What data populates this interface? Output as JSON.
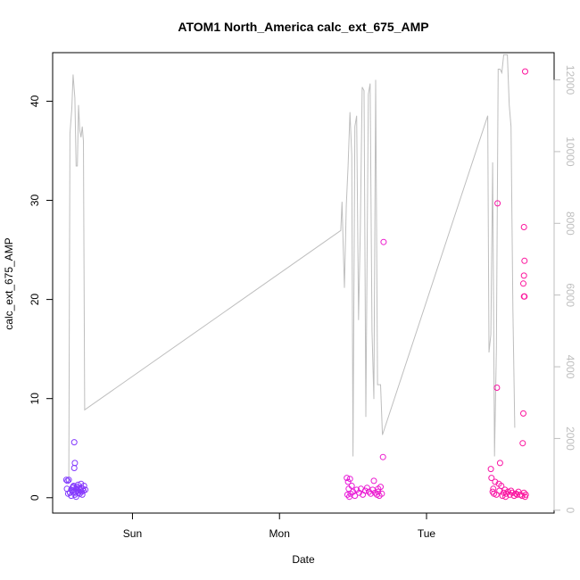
{
  "chart_data": {
    "type": "scatter",
    "title": "ATOM1 North_America calc_ext_675_AMP",
    "xlabel": "Date",
    "ylabel": "calc_ext_675_AMP",
    "x_ticks": [
      "Sun",
      "Mon",
      "Tue"
    ],
    "x_tick_hours": [
      12,
      36,
      60
    ],
    "xlim_hours": [
      -1.03,
      80.83
    ],
    "ylim": [
      -1.55,
      44.9
    ],
    "y_ticks": [
      0,
      10,
      20,
      30,
      40
    ],
    "y2lim": [
      -80,
      12760
    ],
    "y2_ticks": [
      0,
      2000,
      4000,
      6000,
      8000,
      10000,
      12000
    ],
    "grid": false,
    "legend": "none",
    "colors": {
      "line": "#bebebe",
      "point_start": "#7a3cff",
      "point_mid": "#e31fe8",
      "point_end": "#ff1493",
      "axis": "#000000",
      "right_axis": "#bebebe"
    },
    "series": [
      {
        "axis": "left",
        "style": "points",
        "points": [
          [
            1.2,
            1.8
          ],
          [
            1.4,
            1.7
          ],
          [
            1.6,
            1.8
          ],
          [
            1.3,
            0.9
          ],
          [
            1.5,
            0.4
          ],
          [
            1.8,
            0.5
          ],
          [
            2.0,
            0.8
          ],
          [
            2.2,
            1.0
          ],
          [
            2.4,
            0.6
          ],
          [
            2.6,
            0.3
          ],
          [
            2.8,
            0.9
          ],
          [
            2.9,
            1.1
          ],
          [
            3.0,
            0.7
          ],
          [
            2.4,
            1.2
          ],
          [
            2.7,
            0.5
          ],
          [
            3.1,
            1.3
          ],
          [
            3.3,
            1.0
          ],
          [
            3.4,
            0.4
          ],
          [
            3.5,
            0.8
          ],
          [
            2.5,
            5.6
          ],
          [
            2.5,
            3.0
          ],
          [
            2.6,
            3.5
          ],
          [
            2.3,
            1.1
          ],
          [
            2.0,
            0.2
          ],
          [
            2.2,
            0.7
          ],
          [
            3.6,
            1.0
          ],
          [
            3.7,
            0.6
          ],
          [
            3.9,
            0.9
          ],
          [
            4.1,
            1.2
          ],
          [
            4.3,
            0.8
          ],
          [
            2.8,
            0.1
          ],
          [
            3.8,
            0.3
          ],
          [
            3.2,
            0.5
          ],
          [
            4.0,
            0.7
          ],
          [
            3.6,
            1.4
          ],
          [
            47.0,
            2.0
          ],
          [
            47.2,
            1.6
          ],
          [
            47.3,
            0.9
          ],
          [
            47.1,
            0.3
          ],
          [
            47.4,
            0.1
          ],
          [
            47.6,
            0.4
          ],
          [
            47.8,
            1.2
          ],
          [
            48.0,
            0.6
          ],
          [
            48.3,
            0.2
          ],
          [
            48.6,
            0.8
          ],
          [
            49.0,
            0.5
          ],
          [
            49.3,
            0.9
          ],
          [
            49.6,
            0.3
          ],
          [
            50.0,
            0.7
          ],
          [
            50.3,
            1.0
          ],
          [
            50.6,
            0.6
          ],
          [
            50.9,
            0.4
          ],
          [
            51.2,
            0.8
          ],
          [
            51.4,
            1.7
          ],
          [
            51.6,
            0.5
          ],
          [
            51.9,
            0.3
          ],
          [
            52.1,
            0.9
          ],
          [
            52.3,
            0.2
          ],
          [
            52.5,
            1.1
          ],
          [
            52.1,
            0.6
          ],
          [
            47.5,
            1.9
          ],
          [
            52.7,
            0.4
          ],
          [
            53.0,
            25.8
          ],
          [
            52.9,
            4.1
          ],
          [
            70.5,
            2.9
          ],
          [
            70.6,
            2.0
          ],
          [
            70.8,
            0.6
          ],
          [
            71.0,
            0.4
          ],
          [
            71.2,
            1.6
          ],
          [
            71.4,
            0.3
          ],
          [
            71.6,
            29.7
          ],
          [
            71.5,
            11.1
          ],
          [
            71.8,
            1.4
          ],
          [
            72.0,
            3.5
          ],
          [
            72.2,
            1.2
          ],
          [
            72.4,
            0.2
          ],
          [
            72.6,
            0.5
          ],
          [
            72.8,
            0.8
          ],
          [
            73.0,
            0.4
          ],
          [
            73.3,
            0.6
          ],
          [
            73.6,
            0.3
          ],
          [
            74.0,
            0.5
          ],
          [
            74.3,
            0.2
          ],
          [
            74.6,
            0.4
          ],
          [
            75.0,
            0.6
          ],
          [
            75.3,
            0.3
          ],
          [
            75.6,
            0.2
          ],
          [
            75.9,
            0.5
          ],
          [
            76.1,
            0.1
          ],
          [
            75.7,
            5.5
          ],
          [
            75.8,
            8.5
          ],
          [
            75.9,
            20.3
          ],
          [
            76.0,
            20.3
          ],
          [
            75.8,
            21.6
          ],
          [
            75.9,
            22.4
          ],
          [
            76.0,
            23.9
          ],
          [
            75.9,
            27.3
          ],
          [
            76.1,
            43.0
          ],
          [
            76.2,
            0.3
          ],
          [
            70.9,
            0.9
          ],
          [
            71.9,
            0.7
          ],
          [
            72.9,
            0.1
          ],
          [
            73.8,
            0.7
          ],
          [
            74.8,
            0.3
          ]
        ]
      },
      {
        "axis": "right",
        "style": "line",
        "points": [
          [
            1.6,
            800
          ],
          [
            1.8,
            10500
          ],
          [
            2.1,
            11200
          ],
          [
            2.3,
            12150
          ],
          [
            2.6,
            11500
          ],
          [
            2.8,
            9600
          ],
          [
            3.0,
            9600
          ],
          [
            3.2,
            11300
          ],
          [
            3.4,
            10600
          ],
          [
            3.6,
            10400
          ],
          [
            3.8,
            10700
          ],
          [
            4.0,
            10300
          ],
          [
            4.2,
            2800
          ],
          [
            46.0,
            7800
          ],
          [
            46.2,
            8600
          ],
          [
            46.4,
            7400
          ],
          [
            46.6,
            6200
          ],
          [
            46.9,
            8500
          ],
          [
            47.2,
            9600
          ],
          [
            47.5,
            11100
          ],
          [
            47.8,
            9900
          ],
          [
            48.0,
            1500
          ],
          [
            48.3,
            10700
          ],
          [
            48.6,
            11000
          ],
          [
            48.9,
            5300
          ],
          [
            49.2,
            7800
          ],
          [
            49.5,
            11800
          ],
          [
            49.8,
            11700
          ],
          [
            50.1,
            2600
          ],
          [
            50.5,
            11600
          ],
          [
            50.8,
            11900
          ],
          [
            51.1,
            5000
          ],
          [
            51.4,
            3100
          ],
          [
            51.7,
            12000
          ],
          [
            52.0,
            3500
          ],
          [
            52.2,
            3500
          ],
          [
            52.5,
            3500
          ],
          [
            52.8,
            2100
          ],
          [
            70.0,
            11000
          ],
          [
            70.2,
            4400
          ],
          [
            70.5,
            4900
          ],
          [
            70.8,
            9700
          ],
          [
            71.1,
            1500
          ],
          [
            71.4,
            4500
          ],
          [
            71.7,
            12300
          ],
          [
            72.0,
            12300
          ],
          [
            72.3,
            12200
          ],
          [
            72.6,
            12700
          ],
          [
            72.9,
            12700
          ],
          [
            73.2,
            12700
          ],
          [
            73.5,
            11300
          ],
          [
            73.8,
            10700
          ],
          [
            74.1,
            5600
          ],
          [
            74.4,
            2300
          ]
        ]
      }
    ]
  }
}
